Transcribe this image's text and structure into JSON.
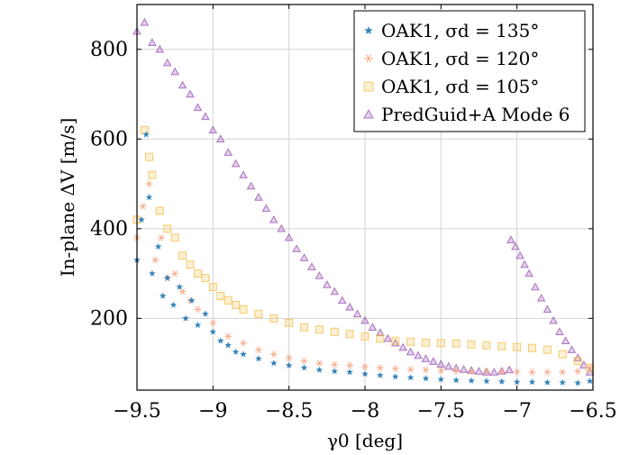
{
  "chart_data": {
    "type": "scatter",
    "title": "",
    "xlabel": "γ0 [deg]",
    "ylabel": "In-plane ΔV [m/s]",
    "xlim": [
      -9.5,
      -6.5
    ],
    "ylim": [
      40,
      900
    ],
    "xticks": [
      -9.5,
      -9,
      -8.5,
      -8,
      -7.5,
      -7,
      -6.5
    ],
    "xtick_labels": [
      "−9.5",
      "−9",
      "−8.5",
      "−8",
      "−7.5",
      "−7",
      "−6.5"
    ],
    "yticks": [
      200,
      400,
      600,
      800
    ],
    "ytick_labels": [
      "200",
      "400",
      "600",
      "800"
    ],
    "grid": true,
    "legend_position": "top-right",
    "legend": [
      "OAK1, σd = 135°",
      "OAK1, σd = 120°",
      "OAK1, σd = 105°",
      "PredGuid+A Mode 6"
    ],
    "series": [
      {
        "name": "OAK1, σd = 135°",
        "marker": "star",
        "color": "#1f77b4",
        "points": [
          [
            -9.5,
            330
          ],
          [
            -9.47,
            420
          ],
          [
            -9.44,
            610
          ],
          [
            -9.42,
            470
          ],
          [
            -9.4,
            300
          ],
          [
            -9.36,
            360
          ],
          [
            -9.33,
            250
          ],
          [
            -9.3,
            290
          ],
          [
            -9.26,
            230
          ],
          [
            -9.22,
            270
          ],
          [
            -9.18,
            200
          ],
          [
            -9.14,
            240
          ],
          [
            -9.1,
            185
          ],
          [
            -9.05,
            210
          ],
          [
            -9.0,
            170
          ],
          [
            -8.95,
            150
          ],
          [
            -8.9,
            140
          ],
          [
            -8.85,
            125
          ],
          [
            -8.8,
            120
          ],
          [
            -8.7,
            110
          ],
          [
            -8.6,
            100
          ],
          [
            -8.5,
            95
          ],
          [
            -8.4,
            90
          ],
          [
            -8.3,
            85
          ],
          [
            -8.2,
            82
          ],
          [
            -8.1,
            80
          ],
          [
            -8.0,
            76
          ],
          [
            -7.9,
            73
          ],
          [
            -7.8,
            70
          ],
          [
            -7.7,
            68
          ],
          [
            -7.6,
            66
          ],
          [
            -7.5,
            64
          ],
          [
            -7.4,
            62
          ],
          [
            -7.3,
            61
          ],
          [
            -7.2,
            60
          ],
          [
            -7.1,
            59
          ],
          [
            -7.0,
            58
          ],
          [
            -6.9,
            58
          ],
          [
            -6.8,
            57
          ],
          [
            -6.7,
            57
          ],
          [
            -6.6,
            56
          ],
          [
            -6.52,
            60
          ]
        ]
      },
      {
        "name": "OAK1, σd = 120°",
        "marker": "asterisk",
        "color": "#f4a582",
        "points": [
          [
            -9.5,
            380
          ],
          [
            -9.46,
            450
          ],
          [
            -9.42,
            500
          ],
          [
            -9.38,
            330
          ],
          [
            -9.34,
            380
          ],
          [
            -9.3,
            290
          ],
          [
            -9.25,
            300
          ],
          [
            -9.2,
            260
          ],
          [
            -9.15,
            240
          ],
          [
            -9.1,
            220
          ],
          [
            -9.0,
            190
          ],
          [
            -8.9,
            160
          ],
          [
            -8.8,
            145
          ],
          [
            -8.7,
            130
          ],
          [
            -8.6,
            120
          ],
          [
            -8.5,
            112
          ],
          [
            -8.4,
            105
          ],
          [
            -8.3,
            100
          ],
          [
            -8.2,
            97
          ],
          [
            -8.1,
            95
          ],
          [
            -8.0,
            92
          ],
          [
            -7.9,
            90
          ],
          [
            -7.8,
            88
          ],
          [
            -7.7,
            86
          ],
          [
            -7.6,
            85
          ],
          [
            -7.5,
            84
          ],
          [
            -7.4,
            83
          ],
          [
            -7.3,
            82
          ],
          [
            -7.2,
            82
          ],
          [
            -7.1,
            81
          ],
          [
            -7.0,
            81
          ],
          [
            -6.9,
            80
          ],
          [
            -6.8,
            80
          ],
          [
            -6.7,
            80
          ],
          [
            -6.6,
            82
          ],
          [
            -6.52,
            90
          ]
        ]
      },
      {
        "name": "OAK1, σd = 105°",
        "marker": "square",
        "color": "#f2c14e",
        "points": [
          [
            -9.5,
            420
          ],
          [
            -9.45,
            620
          ],
          [
            -9.42,
            560
          ],
          [
            -9.4,
            520
          ],
          [
            -9.35,
            440
          ],
          [
            -9.3,
            400
          ],
          [
            -9.25,
            380
          ],
          [
            -9.2,
            340
          ],
          [
            -9.15,
            320
          ],
          [
            -9.1,
            300
          ],
          [
            -9.05,
            290
          ],
          [
            -9.0,
            270
          ],
          [
            -8.95,
            250
          ],
          [
            -8.9,
            240
          ],
          [
            -8.85,
            230
          ],
          [
            -8.8,
            220
          ],
          [
            -8.7,
            210
          ],
          [
            -8.6,
            200
          ],
          [
            -8.5,
            190
          ],
          [
            -8.4,
            180
          ],
          [
            -8.3,
            175
          ],
          [
            -8.2,
            170
          ],
          [
            -8.1,
            165
          ],
          [
            -8.0,
            160
          ],
          [
            -7.9,
            155
          ],
          [
            -7.8,
            150
          ],
          [
            -7.7,
            148
          ],
          [
            -7.6,
            146
          ],
          [
            -7.5,
            145
          ],
          [
            -7.4,
            144
          ],
          [
            -7.3,
            142
          ],
          [
            -7.2,
            140
          ],
          [
            -7.1,
            138
          ],
          [
            -7.0,
            136
          ],
          [
            -6.9,
            134
          ],
          [
            -6.8,
            130
          ],
          [
            -6.7,
            120
          ],
          [
            -6.6,
            105
          ],
          [
            -6.52,
            90
          ]
        ]
      },
      {
        "name": "PredGuid+A Mode 6",
        "marker": "triangle",
        "color": "#8e44ad",
        "points": [
          [
            -9.5,
            840
          ],
          [
            -9.45,
            860
          ],
          [
            -9.4,
            815
          ],
          [
            -9.35,
            800
          ],
          [
            -9.3,
            770
          ],
          [
            -9.25,
            750
          ],
          [
            -9.2,
            720
          ],
          [
            -9.15,
            700
          ],
          [
            -9.1,
            670
          ],
          [
            -9.05,
            650
          ],
          [
            -9.0,
            620
          ],
          [
            -8.95,
            600
          ],
          [
            -8.9,
            570
          ],
          [
            -8.85,
            545
          ],
          [
            -8.8,
            520
          ],
          [
            -8.75,
            495
          ],
          [
            -8.7,
            470
          ],
          [
            -8.65,
            445
          ],
          [
            -8.6,
            420
          ],
          [
            -8.55,
            400
          ],
          [
            -8.5,
            380
          ],
          [
            -8.45,
            355
          ],
          [
            -8.4,
            335
          ],
          [
            -8.35,
            315
          ],
          [
            -8.3,
            295
          ],
          [
            -8.25,
            275
          ],
          [
            -8.2,
            260
          ],
          [
            -8.15,
            240
          ],
          [
            -8.1,
            225
          ],
          [
            -8.05,
            210
          ],
          [
            -8.0,
            195
          ],
          [
            -7.95,
            180
          ],
          [
            -7.9,
            168
          ],
          [
            -7.85,
            155
          ],
          [
            -7.8,
            145
          ],
          [
            -7.75,
            135
          ],
          [
            -7.7,
            125
          ],
          [
            -7.65,
            117
          ],
          [
            -7.6,
            110
          ],
          [
            -7.55,
            104
          ],
          [
            -7.5,
            98
          ],
          [
            -7.45,
            93
          ],
          [
            -7.4,
            89
          ],
          [
            -7.35,
            86
          ],
          [
            -7.3,
            84
          ],
          [
            -7.25,
            82
          ],
          [
            -7.2,
            80
          ],
          [
            -7.15,
            80
          ],
          [
            -7.1,
            82
          ],
          [
            -7.05,
            85
          ],
          [
            -7.04,
            375
          ],
          [
            -7.01,
            360
          ],
          [
            -6.98,
            340
          ],
          [
            -6.95,
            320
          ],
          [
            -6.92,
            300
          ],
          [
            -6.88,
            270
          ],
          [
            -6.84,
            245
          ],
          [
            -6.8,
            220
          ],
          [
            -6.76,
            195
          ],
          [
            -6.72,
            170
          ],
          [
            -6.68,
            150
          ],
          [
            -6.64,
            130
          ],
          [
            -6.6,
            112
          ],
          [
            -6.56,
            96
          ],
          [
            -6.52,
            80
          ]
        ]
      }
    ]
  }
}
